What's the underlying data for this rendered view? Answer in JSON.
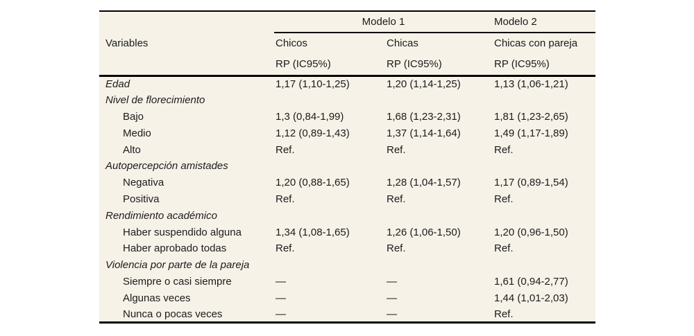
{
  "table": {
    "colors": {
      "background": "#f6f2e8",
      "line": "#000000",
      "text": "#1b1b1b",
      "page_background": "#ffffff"
    },
    "header": {
      "variables_label": "Variables",
      "model_groups": [
        {
          "label": "Modelo 1"
        },
        {
          "label": "Modelo 2"
        }
      ],
      "columns": [
        {
          "label": "Chicos",
          "sublabel": "RP (IC95%)"
        },
        {
          "label": "Chicas",
          "sublabel": "RP (IC95%)"
        },
        {
          "label": "Chicas con pareja",
          "sublabel": "RP (IC95%)"
        }
      ]
    },
    "rows": [
      {
        "label": "Edad",
        "style": "section",
        "values": [
          "1,17 (1,10-1,25)",
          "1,20 (1,14-1,25)",
          "1,13 (1,06-1,21)"
        ]
      },
      {
        "label": "Nivel de florecimiento",
        "style": "section",
        "values": [
          "",
          "",
          ""
        ]
      },
      {
        "label": "Bajo",
        "style": "item",
        "values": [
          "1,3 (0,84-1,99)",
          "1,68 (1,23-2,31)",
          "1,81 (1,23-2,65)"
        ]
      },
      {
        "label": "Medio",
        "style": "item",
        "values": [
          "1,12 (0,89-1,43)",
          "1,37 (1,14-1,64)",
          "1,49 (1,17-1,89)"
        ]
      },
      {
        "label": "Alto",
        "style": "item",
        "values": [
          "Ref.",
          "Ref.",
          "Ref."
        ]
      },
      {
        "label": "Autopercepción amistades",
        "style": "section",
        "values": [
          "",
          "",
          ""
        ]
      },
      {
        "label": "Negativa",
        "style": "item",
        "values": [
          "1,20 (0,88-1,65)",
          "1,28 (1,04-1,57)",
          "1,17 (0,89-1,54)"
        ]
      },
      {
        "label": "Positiva",
        "style": "item",
        "values": [
          "Ref.",
          "Ref.",
          "Ref."
        ]
      },
      {
        "label": "Rendimiento académico",
        "style": "section",
        "values": [
          "",
          "",
          ""
        ]
      },
      {
        "label": "Haber suspendido alguna",
        "style": "item",
        "values": [
          "1,34 (1,08-1,65)",
          "1,26 (1,06-1,50)",
          "1,20 (0,96-1,50)"
        ]
      },
      {
        "label": "Haber aprobado todas",
        "style": "item",
        "values": [
          "Ref.",
          "Ref.",
          "Ref."
        ]
      },
      {
        "label": "Violencia por parte de la pareja",
        "style": "section",
        "values": [
          "",
          "",
          ""
        ]
      },
      {
        "label": "Siempre o casi siempre",
        "style": "item",
        "values": [
          "—",
          "—",
          "1,61 (0,94-2,77)"
        ]
      },
      {
        "label": "Algunas veces",
        "style": "item",
        "values": [
          "—",
          "—",
          "1,44 (1,01-2,03)"
        ]
      },
      {
        "label": "Nunca o pocas veces",
        "style": "item",
        "values": [
          "—",
          "—",
          "Ref."
        ]
      }
    ]
  }
}
